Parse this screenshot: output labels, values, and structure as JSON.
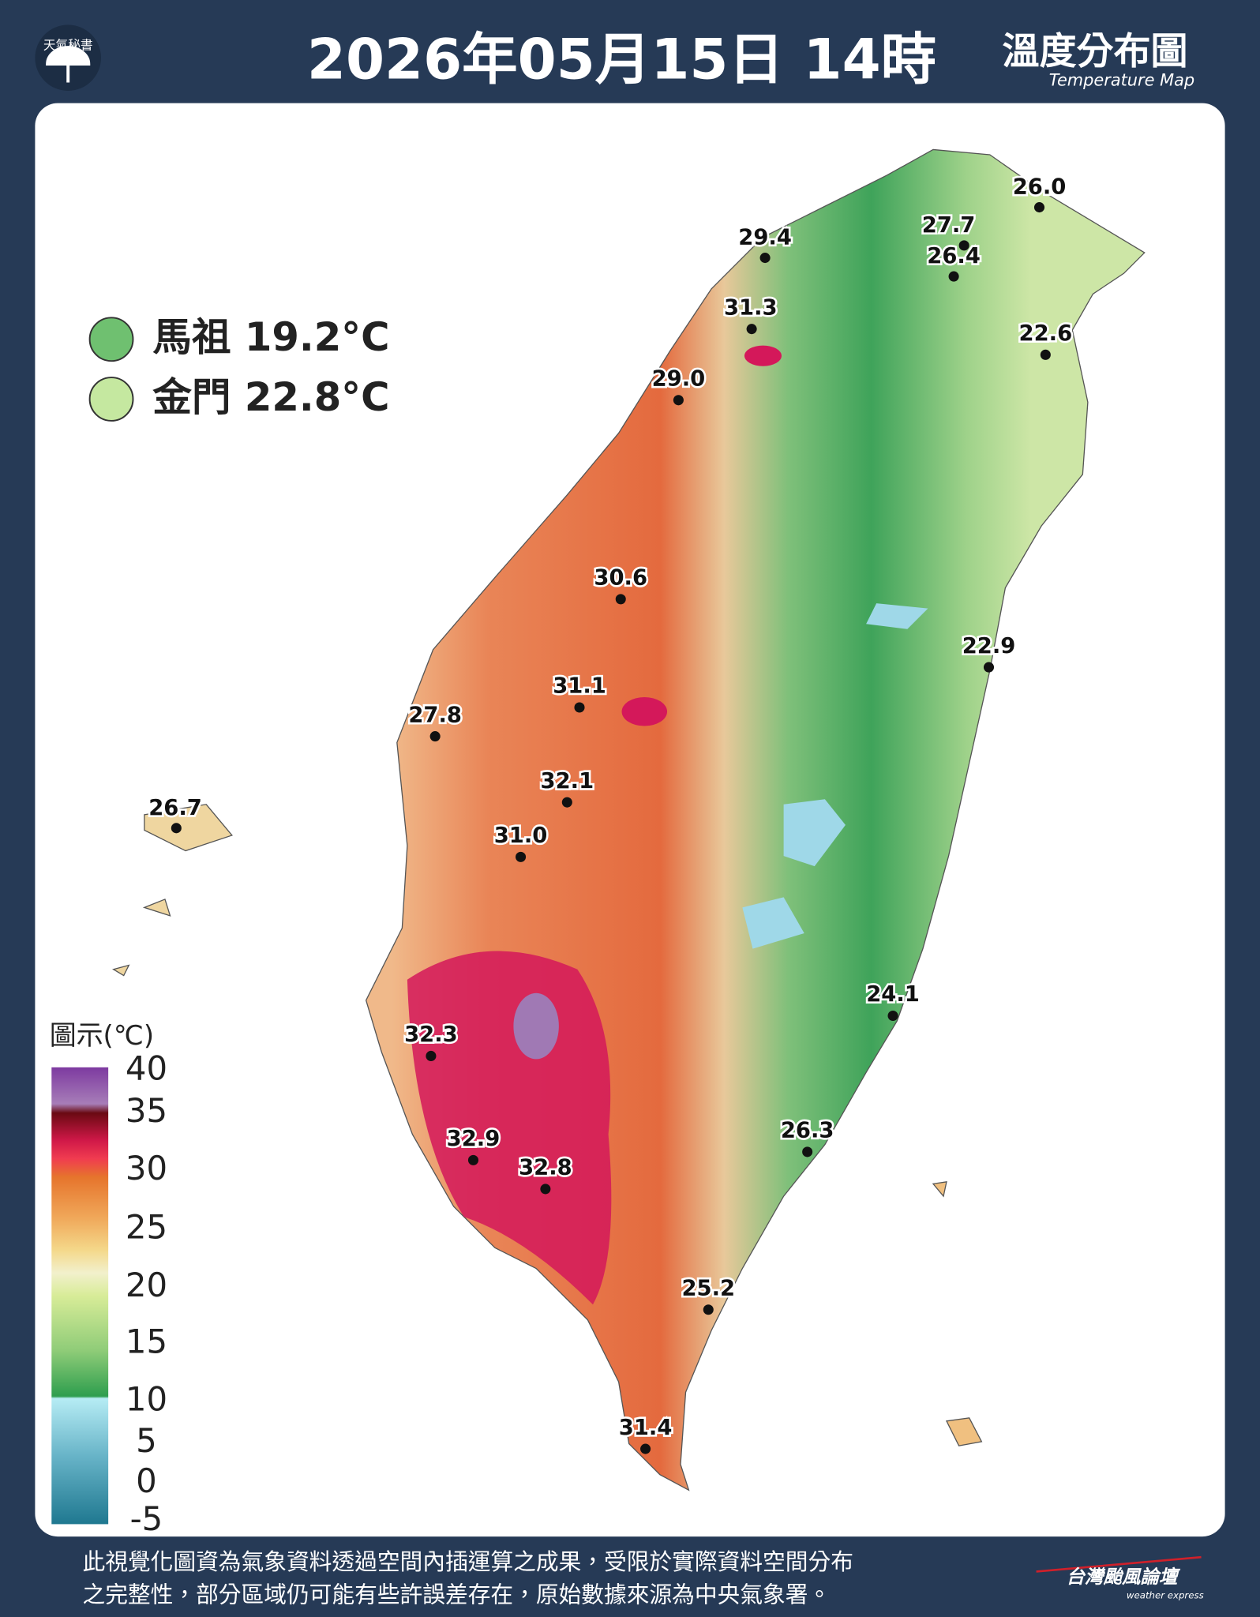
{
  "header": {
    "logo_text": "天氣秘書",
    "title": "2026年05月15日 14時",
    "map_title": "溫度分布圖",
    "map_subtitle": "Temperature Map"
  },
  "islands": [
    {
      "name": "馬祖",
      "temp": "19.2°C"
    },
    {
      "name": "金門",
      "temp": "22.8°C"
    }
  ],
  "stations": [
    "26.0",
    "27.7",
    "26.4",
    "29.4",
    "31.3",
    "22.6",
    "29.0",
    "30.6",
    "22.9",
    "31.1",
    "27.8",
    "32.1",
    "26.7",
    "31.0",
    "24.1",
    "32.3",
    "26.3",
    "32.9",
    "32.8",
    "25.2",
    "31.4"
  ],
  "legend": {
    "title": "圖示(℃)",
    "ticks": [
      40,
      35,
      30,
      25,
      20,
      15,
      10,
      5,
      0,
      -5
    ]
  },
  "footer": {
    "note_lines": [
      "此視覺化圖資為氣象資料透過空間內插運算之成果，受限於實際資料空間分布",
      "之完整性，部分區域仍可能有些許誤差存在，原始數據來源為中央氣象署。"
    ],
    "brand": "台灣颱風論壇",
    "brand_sub": "weather express"
  }
}
